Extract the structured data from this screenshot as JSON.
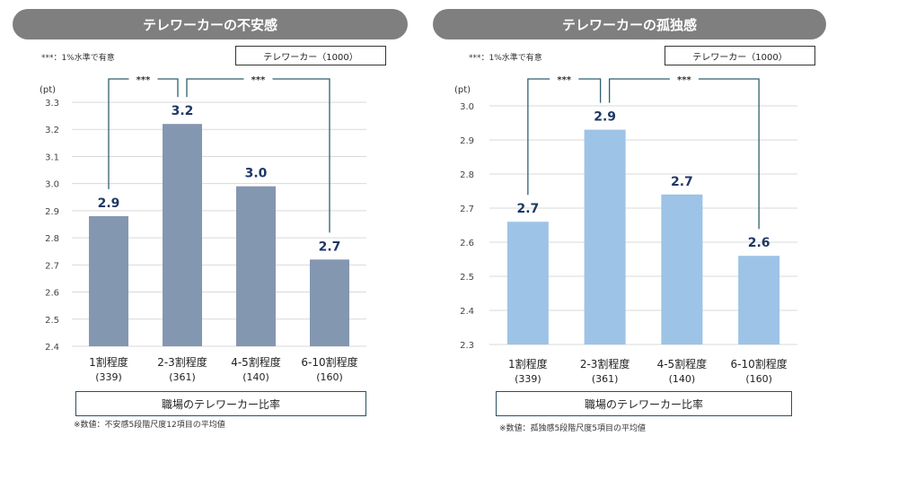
{
  "chart_data": [
    {
      "type": "bar",
      "title": "テレワーカーの不安感",
      "significance_note": "***：1%水準で有意",
      "legend": "テレワーカー（1000）",
      "unit": "(pt)",
      "categories": [
        "1割程度",
        "2-3割程度",
        "4-5割程度",
        "6-10割程度"
      ],
      "category_n": [
        "(339)",
        "(361)",
        "(140)",
        "(160)"
      ],
      "values": [
        2.88,
        3.22,
        2.99,
        2.72
      ],
      "value_labels": [
        "2.9",
        "3.2",
        "3.0",
        "2.7"
      ],
      "ylim": [
        2.4,
        3.3
      ],
      "yticks": [
        "2.4",
        "2.5",
        "2.6",
        "2.7",
        "2.8",
        "2.9",
        "3.0",
        "3.1",
        "3.2",
        "3.3"
      ],
      "significance": [
        {
          "from": 0,
          "to": 1,
          "label": "***"
        },
        {
          "from": 1,
          "to": 3,
          "label": "***"
        }
      ],
      "xlabel": "職場のテレワーカー比率",
      "footnote": "※数値：不安感5段階尺度12項目の平均値",
      "bar_color": "#8497b0",
      "grid": true
    },
    {
      "type": "bar",
      "title": "テレワーカーの孤独感",
      "significance_note": "***：1%水準で有意",
      "legend": "テレワーカー（1000）",
      "unit": "(pt)",
      "categories": [
        "1割程度",
        "2-3割程度",
        "4-5割程度",
        "6-10割程度"
      ],
      "category_n": [
        "(339)",
        "(361)",
        "(140)",
        "(160)"
      ],
      "values": [
        2.66,
        2.93,
        2.74,
        2.56
      ],
      "value_labels": [
        "2.7",
        "2.9",
        "2.7",
        "2.6"
      ],
      "ylim": [
        2.3,
        3.0
      ],
      "yticks": [
        "2.3",
        "2.4",
        "2.5",
        "2.6",
        "2.7",
        "2.8",
        "2.9",
        "3.0"
      ],
      "significance": [
        {
          "from": 0,
          "to": 1,
          "label": "***"
        },
        {
          "from": 1,
          "to": 3,
          "label": "***"
        }
      ],
      "xlabel": "職場のテレワーカー比率",
      "footnote": "※数値：孤独感5段階尺度5項目の平均値",
      "bar_color": "#9dc3e6",
      "grid": true
    }
  ]
}
